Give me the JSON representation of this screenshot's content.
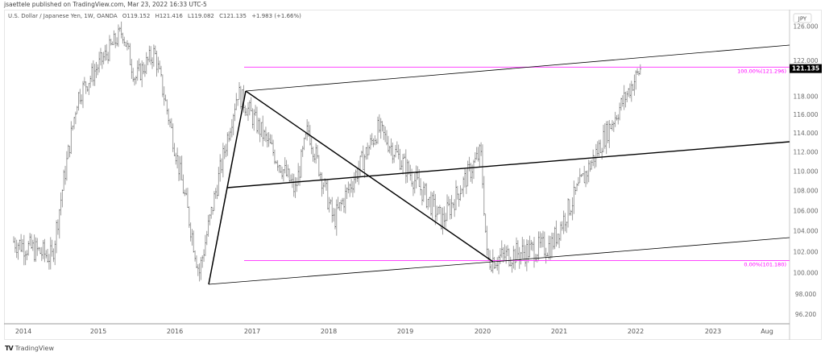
{
  "header": {
    "published": "jsaettele published on TradingView.com, Mar 23, 2022 16:33 UTC-5"
  },
  "legend": {
    "symbol": "U.S. Dollar / Japanese Yen, 1W, OANDA",
    "open": "O119.152",
    "high": "H121.416",
    "low": "L119.082",
    "close": "C121.135",
    "change": "+1.983 (+1.66%)"
  },
  "footer": {
    "logo_mark": "TV",
    "brand": "TradingView"
  },
  "chart_data": {
    "type": "bar",
    "title": "U.S. Dollar / Japanese Yen, 1W, OANDA",
    "xlabel": "",
    "ylabel": "JPY",
    "currency": "JPY",
    "scale": "log",
    "ylim": [
      95.5,
      127.5
    ],
    "last_price": "121.135",
    "last_price_color": "#000000",
    "y_ticks": [
      "126.000",
      "122.000",
      "118.000",
      "116.000",
      "114.000",
      "112.000",
      "110.000",
      "108.000",
      "106.000",
      "104.000",
      "102.000",
      "100.000",
      "98.000",
      "96.200"
    ],
    "x_ticks": [
      "2014",
      "2015",
      "2016",
      "2017",
      "2018",
      "2019",
      "2020",
      "2021",
      "2022",
      "2023",
      "Aug"
    ],
    "grid": false,
    "bar_color": "#9e9e9e",
    "approx_path": [
      {
        "date": "2014-01",
        "price": 103.0
      },
      {
        "date": "2014-07",
        "price": 101.5
      },
      {
        "date": "2014-11",
        "price": 118.0
      },
      {
        "date": "2015-06",
        "price": 125.5
      },
      {
        "date": "2015-08",
        "price": 120.0
      },
      {
        "date": "2015-11",
        "price": 123.0
      },
      {
        "date": "2016-06",
        "price": 100.0
      },
      {
        "date": "2016-12",
        "price": 118.5
      },
      {
        "date": "2017-09",
        "price": 108.0
      },
      {
        "date": "2017-11",
        "price": 114.5
      },
      {
        "date": "2018-03",
        "price": 105.0
      },
      {
        "date": "2018-10",
        "price": 114.5
      },
      {
        "date": "2019-08",
        "price": 105.0
      },
      {
        "date": "2020-02",
        "price": 112.0
      },
      {
        "date": "2020-03",
        "price": 101.2
      },
      {
        "date": "2021-01",
        "price": 102.6
      },
      {
        "date": "2021-10",
        "price": 114.5
      },
      {
        "date": "2022-03",
        "price": 121.135
      }
    ],
    "annotations": {
      "fib_levels": [
        {
          "label": "100.00%(121.296)",
          "price": 121.296,
          "color": "#ff00ff"
        },
        {
          "label": "0.00%(101.180)",
          "price": 101.18,
          "color": "#ff00ff"
        }
      ],
      "pitchfork": {
        "color": "#000000",
        "anchors": [
          {
            "date": "2016-06",
            "price": 99.0
          },
          {
            "date": "2016-12",
            "price": 118.6
          },
          {
            "date": "2020-03",
            "price": 101.18
          }
        ],
        "lines": [
          "upper parallel",
          "median",
          "lower parallel",
          "handle"
        ]
      }
    }
  }
}
